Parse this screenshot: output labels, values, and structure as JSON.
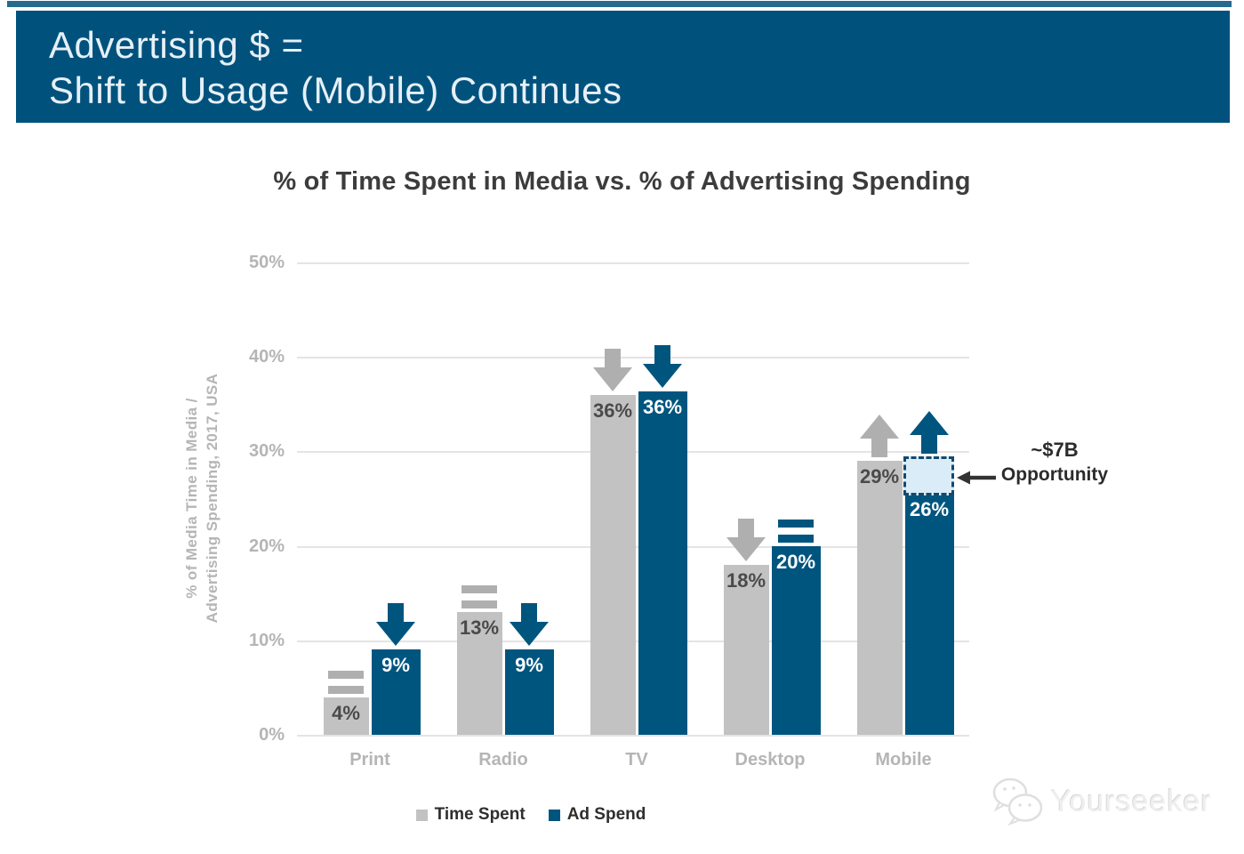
{
  "header": {
    "line1": "Advertising $ =",
    "line2": "Shift to Usage (Mobile) Continues"
  },
  "chart_data": {
    "type": "bar",
    "title": "% of Time Spent in Media vs. % of Advertising Spending",
    "ylabel": [
      "% of Media Time in Media /",
      "Advertising Spending, 2017, USA"
    ],
    "categories": [
      "Print",
      "Radio",
      "TV",
      "Desktop",
      "Mobile"
    ],
    "series": [
      {
        "name": "Time Spent",
        "color": "#C2C2C2",
        "values": [
          4,
          13,
          36,
          18,
          29
        ],
        "value_labels": [
          "4%",
          "13%",
          "36%",
          "18%",
          "29%"
        ],
        "trends": [
          "equal",
          "equal",
          "down",
          "down",
          "up"
        ]
      },
      {
        "name": "Ad Spend",
        "color": "#00557F",
        "values": [
          9,
          9,
          36,
          20,
          26
        ],
        "value_labels": [
          "9%",
          "9%",
          "36%",
          "20%",
          "26%"
        ],
        "trends": [
          "down",
          "down",
          "down",
          "equal",
          "up"
        ]
      }
    ],
    "yticks": [
      50,
      40,
      30,
      20,
      10,
      0
    ],
    "ytick_labels": [
      "50%",
      "40%",
      "30%",
      "20%",
      "10%",
      "0%"
    ],
    "ylim": [
      0,
      50
    ],
    "grid": true,
    "legend_position": "bottom-center",
    "annotation": {
      "line1": "~$7B",
      "line2": "Opportunity",
      "attached_to": "Mobile Ad Spend bar",
      "box_from_pct": 26,
      "box_to_pct": 29.5
    }
  },
  "legend": {
    "items": [
      {
        "label": "Time Spent",
        "swatch_color": "#C2C2C2"
      },
      {
        "label": "Ad Spend",
        "swatch_color": "#00557F"
      }
    ]
  },
  "watermark": {
    "icon": "wechat-chat-bubbles-icon",
    "text": "Yourseeker"
  },
  "icons": {
    "trend_down": "down-arrow-icon",
    "trend_up": "up-arrow-icon",
    "trend_equal": "equals-icon",
    "annotation_pointer": "left-arrow-icon",
    "watermark": "wechat-chat-bubbles-icon"
  },
  "colors": {
    "header_bg": "#00527D",
    "header_text": "#E6F0F7",
    "bar_gray": "#C2C2C2",
    "bar_blue": "#00557F",
    "arrow_gray": "#AFAFAF",
    "opportunity_fill": "#D9ECF7",
    "opportunity_border": "#12496F",
    "grid_line": "#E4E4E4",
    "axis_text": "#B5B5B5",
    "value_label_dark": "#4A4A4A",
    "value_label_light": "#FFFFFF",
    "annotation_text": "#2B2B2B",
    "pointer_black": "#333333"
  }
}
